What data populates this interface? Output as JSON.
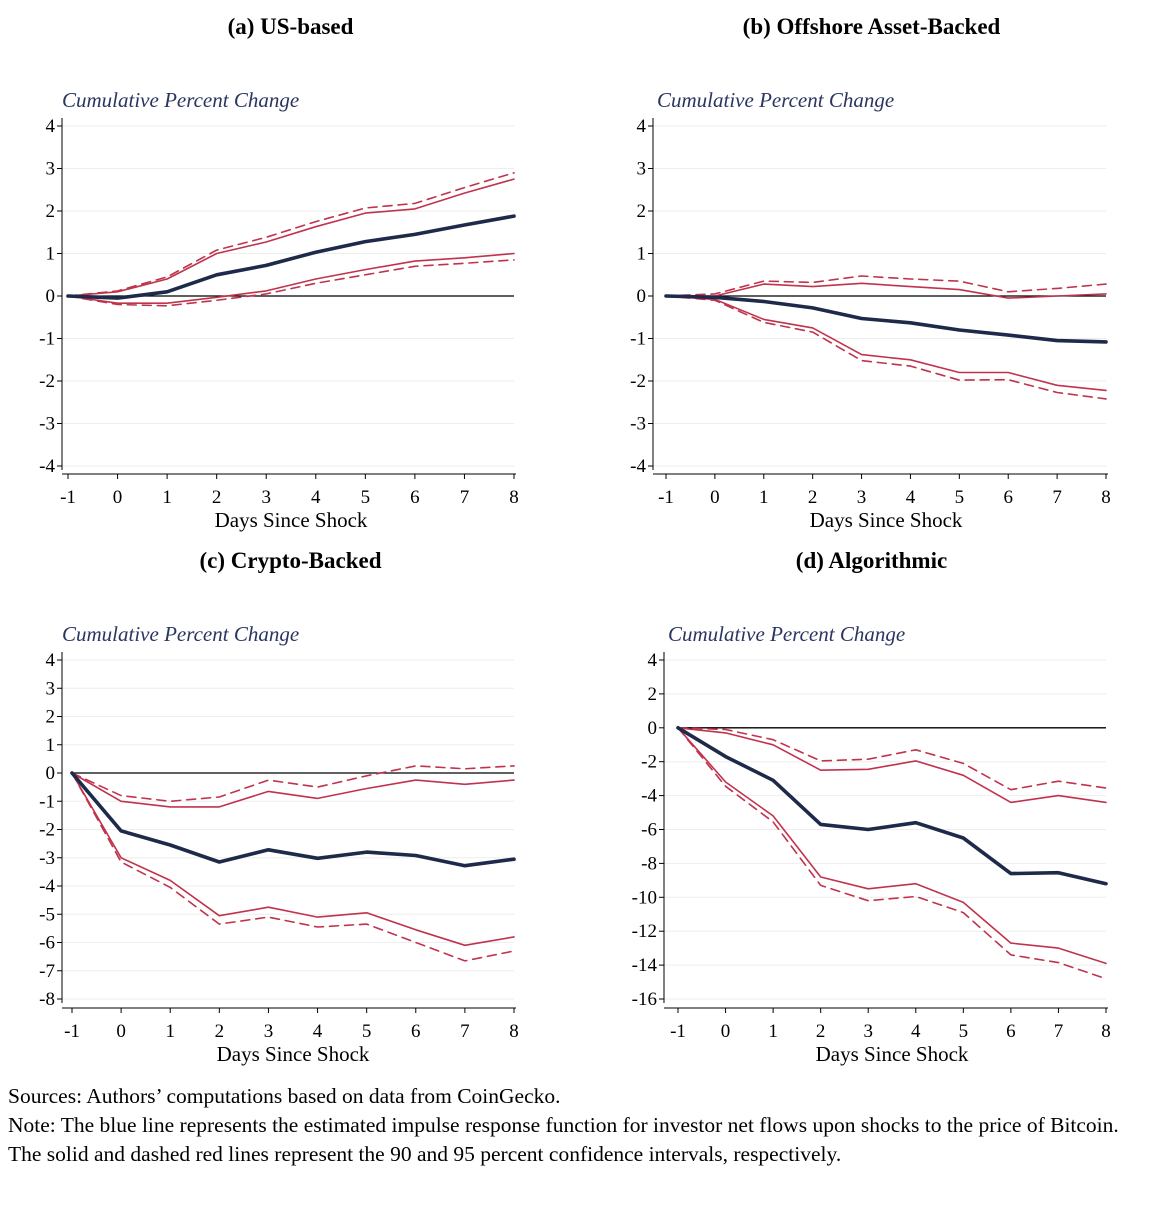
{
  "colors": {
    "irf": "#1e2a4a",
    "ci": "#c0334d",
    "zero": "#000000",
    "grid": "#eeeeee",
    "ytitle": "#2a3560"
  },
  "chart_data": [
    {
      "type": "line",
      "panel_title": "(a) US-based",
      "ytitle": "Cumulative Percent Change",
      "xlabel": "Days Since Shock",
      "x": [
        -1,
        0,
        1,
        2,
        3,
        4,
        5,
        6,
        7,
        8
      ],
      "x_ticks": [
        "-1",
        "0",
        "1",
        "2",
        "3",
        "4",
        "5",
        "6",
        "7",
        "8"
      ],
      "ylim": [
        -4,
        4
      ],
      "y_ticks": [
        4,
        3,
        2,
        1,
        0,
        -1,
        -2,
        -3,
        -4
      ],
      "series": [
        {
          "name": "Impulse response",
          "style": "irf",
          "values": [
            0,
            -0.05,
            0.1,
            0.5,
            0.72,
            1.03,
            1.28,
            1.45,
            1.67,
            1.88
          ]
        },
        {
          "name": "90% CI upper",
          "style": "ci90",
          "values": [
            0,
            0.1,
            0.4,
            1.0,
            1.27,
            1.63,
            1.95,
            2.05,
            2.42,
            2.75
          ]
        },
        {
          "name": "90% CI lower",
          "style": "ci90",
          "values": [
            0,
            -0.17,
            -0.17,
            -0.03,
            0.12,
            0.4,
            0.62,
            0.82,
            0.9,
            1.0
          ]
        },
        {
          "name": "95% CI upper",
          "style": "ci95",
          "values": [
            0,
            0.12,
            0.45,
            1.08,
            1.38,
            1.75,
            2.07,
            2.18,
            2.55,
            2.9
          ]
        },
        {
          "name": "95% CI lower",
          "style": "ci95",
          "values": [
            0,
            -0.2,
            -0.23,
            -0.1,
            0.05,
            0.3,
            0.5,
            0.7,
            0.77,
            0.85
          ]
        }
      ]
    },
    {
      "type": "line",
      "panel_title": "(b) Offshore Asset-Backed",
      "ytitle": "Cumulative Percent Change",
      "xlabel": "Days Since Shock",
      "x": [
        -1,
        0,
        1,
        2,
        3,
        4,
        5,
        6,
        7,
        8
      ],
      "x_ticks": [
        "-1",
        "0",
        "1",
        "2",
        "3",
        "4",
        "5",
        "6",
        "7",
        "8"
      ],
      "ylim": [
        -4,
        4
      ],
      "y_ticks": [
        4,
        3,
        2,
        1,
        0,
        -1,
        -2,
        -3,
        -4
      ],
      "series": [
        {
          "name": "Impulse response",
          "style": "irf",
          "values": [
            0,
            -0.03,
            -0.13,
            -0.28,
            -0.53,
            -0.63,
            -0.8,
            -0.92,
            -1.05,
            -1.08
          ]
        },
        {
          "name": "90% CI upper",
          "style": "ci90",
          "values": [
            0,
            0,
            0.28,
            0.22,
            0.3,
            0.22,
            0.15,
            -0.05,
            0,
            0.05
          ]
        },
        {
          "name": "90% CI lower",
          "style": "ci90",
          "values": [
            0,
            -0.08,
            -0.55,
            -0.75,
            -1.38,
            -1.5,
            -1.8,
            -1.8,
            -2.1,
            -2.22
          ]
        },
        {
          "name": "95% CI upper",
          "style": "ci95",
          "values": [
            0,
            0.05,
            0.35,
            0.32,
            0.47,
            0.4,
            0.35,
            0.1,
            0.18,
            0.28
          ]
        },
        {
          "name": "95% CI lower",
          "style": "ci95",
          "values": [
            0,
            -0.1,
            -0.62,
            -0.85,
            -1.52,
            -1.65,
            -1.98,
            -1.97,
            -2.27,
            -2.42
          ]
        }
      ]
    },
    {
      "type": "line",
      "panel_title": "(c) Crypto-Backed",
      "ytitle": "Cumulative Percent Change",
      "xlabel": "Days Since Shock",
      "x": [
        -1,
        0,
        1,
        2,
        3,
        4,
        5,
        6,
        7,
        8
      ],
      "x_ticks": [
        "-1",
        "0",
        "1",
        "2",
        "3",
        "4",
        "5",
        "6",
        "7",
        "8"
      ],
      "ylim": [
        -8,
        4
      ],
      "y_ticks": [
        4,
        3,
        2,
        1,
        0,
        -1,
        -2,
        -3,
        -4,
        -5,
        -6,
        -7,
        -8
      ],
      "series": [
        {
          "name": "Impulse response",
          "style": "irf",
          "values": [
            0,
            -2.05,
            -2.55,
            -3.15,
            -2.72,
            -3.02,
            -2.8,
            -2.92,
            -3.28,
            -3.05
          ]
        },
        {
          "name": "90% CI upper",
          "style": "ci90",
          "values": [
            0,
            -1.0,
            -1.2,
            -1.2,
            -0.65,
            -0.9,
            -0.55,
            -0.25,
            -0.4,
            -0.25
          ]
        },
        {
          "name": "90% CI lower",
          "style": "ci90",
          "values": [
            0,
            -3.0,
            -3.8,
            -5.05,
            -4.75,
            -5.1,
            -4.95,
            -5.55,
            -6.1,
            -5.8
          ]
        },
        {
          "name": "95% CI upper",
          "style": "ci95",
          "values": [
            0,
            -0.8,
            -1.0,
            -0.85,
            -0.25,
            -0.5,
            -0.1,
            0.25,
            0.15,
            0.25
          ]
        },
        {
          "name": "95% CI lower",
          "style": "ci95",
          "values": [
            0,
            -3.15,
            -4.05,
            -5.35,
            -5.1,
            -5.45,
            -5.35,
            -6.0,
            -6.65,
            -6.3
          ]
        }
      ]
    },
    {
      "type": "line",
      "panel_title": "(d) Algorithmic",
      "ytitle": "Cumulative Percent Change",
      "xlabel": "Days Since Shock",
      "x": [
        -1,
        0,
        1,
        2,
        3,
        4,
        5,
        6,
        7,
        8
      ],
      "x_ticks": [
        "-1",
        "0",
        "1",
        "2",
        "3",
        "4",
        "5",
        "6",
        "7",
        "8"
      ],
      "ylim": [
        -16,
        4
      ],
      "y_ticks": [
        4,
        2,
        0,
        -2,
        -4,
        -6,
        -8,
        -10,
        -12,
        -14,
        -16
      ],
      "series": [
        {
          "name": "Impulse response",
          "style": "irf",
          "values": [
            0,
            -1.7,
            -3.1,
            -5.7,
            -6.0,
            -5.6,
            -6.5,
            -8.6,
            -8.55,
            -9.2
          ]
        },
        {
          "name": "90% CI upper",
          "style": "ci90",
          "values": [
            0,
            -0.3,
            -1.0,
            -2.5,
            -2.45,
            -1.95,
            -2.8,
            -4.4,
            -4.0,
            -4.4
          ]
        },
        {
          "name": "90% CI lower",
          "style": "ci90",
          "values": [
            0,
            -3.2,
            -5.2,
            -8.8,
            -9.5,
            -9.2,
            -10.3,
            -12.7,
            -13.0,
            -13.9
          ]
        },
        {
          "name": "95% CI upper",
          "style": "ci95",
          "values": [
            0,
            -0.1,
            -0.7,
            -1.95,
            -1.85,
            -1.3,
            -2.1,
            -3.65,
            -3.15,
            -3.55
          ]
        },
        {
          "name": "95% CI lower",
          "style": "ci95",
          "values": [
            0,
            -3.45,
            -5.55,
            -9.3,
            -10.2,
            -9.95,
            -10.9,
            -13.4,
            -13.85,
            -14.8
          ]
        }
      ]
    }
  ],
  "notes": {
    "sources": "Sources: Authors’ computations based on data from CoinGecko.",
    "note": "Note: The blue line represents the estimated impulse response function for investor net flows upon shocks to the price of Bitcoin. The solid and dashed red lines represent the 90 and 95 percent confidence intervals, respectively."
  }
}
